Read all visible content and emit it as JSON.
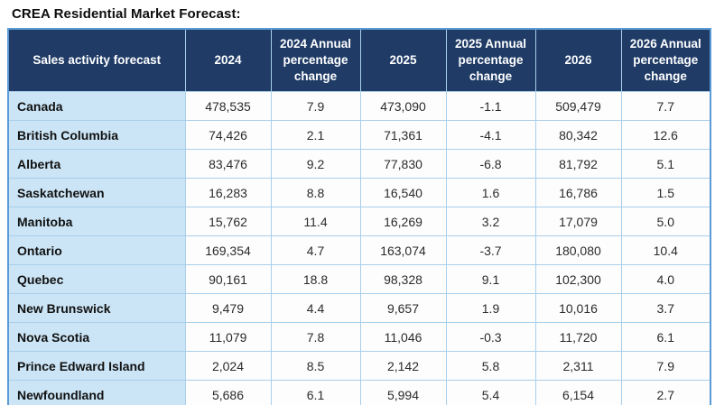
{
  "page_title": "CREA Residential Market Forecast:",
  "colors": {
    "header_bg": "#1f3b66",
    "header_text": "#ffffff",
    "region_col_bg": "#cbe5f6",
    "cell_bg": "#fdfdfd",
    "grid_border": "#a9cfeb",
    "outer_border": "#5b9bd5"
  },
  "chart_data": {
    "type": "table",
    "title": "CREA Residential Market Forecast:",
    "columns": [
      "Sales activity forecast",
      "2024",
      "2024 Annual percentage change",
      "2025",
      "2025 Annual percentage change",
      "2026",
      "2026 Annual percentage change"
    ],
    "rows": [
      [
        "Canada",
        "478,535",
        "7.9",
        "473,090",
        "-1.1",
        "509,479",
        "7.7"
      ],
      [
        "British Columbia",
        "74,426",
        "2.1",
        "71,361",
        "-4.1",
        "80,342",
        "12.6"
      ],
      [
        "Alberta",
        "83,476",
        "9.2",
        "77,830",
        "-6.8",
        "81,792",
        "5.1"
      ],
      [
        "Saskatchewan",
        "16,283",
        "8.8",
        "16,540",
        "1.6",
        "16,786",
        "1.5"
      ],
      [
        "Manitoba",
        "15,762",
        "11.4",
        "16,269",
        "3.2",
        "17,079",
        "5.0"
      ],
      [
        "Ontario",
        "169,354",
        "4.7",
        "163,074",
        "-3.7",
        "180,080",
        "10.4"
      ],
      [
        "Quebec",
        "90,161",
        "18.8",
        "98,328",
        "9.1",
        "102,300",
        "4.0"
      ],
      [
        "New Brunswick",
        "9,479",
        "4.4",
        "9,657",
        "1.9",
        "10,016",
        "3.7"
      ],
      [
        "Nova Scotia",
        "11,079",
        "7.8",
        "11,046",
        "-0.3",
        "11,720",
        "6.1"
      ],
      [
        "Prince Edward Island",
        "2,024",
        "8.5",
        "2,142",
        "5.8",
        "2,311",
        "7.9"
      ],
      [
        "Newfoundland",
        "5,686",
        "6.1",
        "5,994",
        "5.4",
        "6,154",
        "2.7"
      ]
    ],
    "numeric_rows": [
      {
        "region": "Canada",
        "sales_2024": 478535,
        "pct_2024": 7.9,
        "sales_2025": 473090,
        "pct_2025": -1.1,
        "sales_2026": 509479,
        "pct_2026": 7.7
      },
      {
        "region": "British Columbia",
        "sales_2024": 74426,
        "pct_2024": 2.1,
        "sales_2025": 71361,
        "pct_2025": -4.1,
        "sales_2026": 80342,
        "pct_2026": 12.6
      },
      {
        "region": "Alberta",
        "sales_2024": 83476,
        "pct_2024": 9.2,
        "sales_2025": 77830,
        "pct_2025": -6.8,
        "sales_2026": 81792,
        "pct_2026": 5.1
      },
      {
        "region": "Saskatchewan",
        "sales_2024": 16283,
        "pct_2024": 8.8,
        "sales_2025": 16540,
        "pct_2025": 1.6,
        "sales_2026": 16786,
        "pct_2026": 1.5
      },
      {
        "region": "Manitoba",
        "sales_2024": 15762,
        "pct_2024": 11.4,
        "sales_2025": 16269,
        "pct_2025": 3.2,
        "sales_2026": 17079,
        "pct_2026": 5.0
      },
      {
        "region": "Ontario",
        "sales_2024": 169354,
        "pct_2024": 4.7,
        "sales_2025": 163074,
        "pct_2025": -3.7,
        "sales_2026": 180080,
        "pct_2026": 10.4
      },
      {
        "region": "Quebec",
        "sales_2024": 90161,
        "pct_2024": 18.8,
        "sales_2025": 98328,
        "pct_2025": 9.1,
        "sales_2026": 102300,
        "pct_2026": 4.0
      },
      {
        "region": "New Brunswick",
        "sales_2024": 9479,
        "pct_2024": 4.4,
        "sales_2025": 9657,
        "pct_2025": 1.9,
        "sales_2026": 10016,
        "pct_2026": 3.7
      },
      {
        "region": "Nova Scotia",
        "sales_2024": 11079,
        "pct_2024": 7.8,
        "sales_2025": 11046,
        "pct_2025": -0.3,
        "sales_2026": 11720,
        "pct_2026": 6.1
      },
      {
        "region": "Prince Edward Island",
        "sales_2024": 2024,
        "pct_2024": 8.5,
        "sales_2025": 2142,
        "pct_2025": 5.8,
        "sales_2026": 2311,
        "pct_2026": 7.9
      },
      {
        "region": "Newfoundland",
        "sales_2024": 5686,
        "pct_2024": 6.1,
        "sales_2025": 5994,
        "pct_2025": 5.4,
        "sales_2026": 6154,
        "pct_2026": 2.7
      }
    ]
  }
}
